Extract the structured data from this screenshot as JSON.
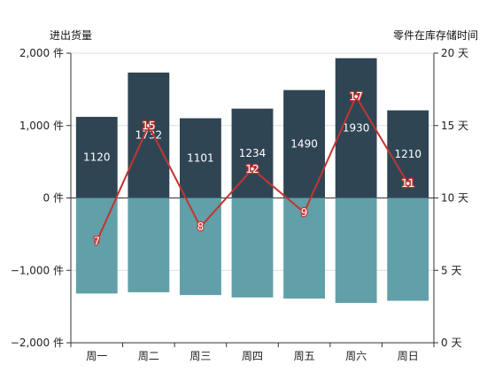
{
  "chart_data": {
    "type": "bar",
    "categories": [
      "周一",
      "周二",
      "周三",
      "周四",
      "周五",
      "周六",
      "周日"
    ],
    "y_left": {
      "title": "进出货量",
      "unit": "件",
      "min": -2000,
      "max": 2000,
      "interval": 1000,
      "ticks": [
        "−2,000 件",
        "−1,000 件",
        "0 件",
        "1,000 件",
        "2,000 件"
      ]
    },
    "y_right": {
      "title": "零件在库存储时间",
      "unit": "天",
      "min": 0,
      "max": 20,
      "interval": 5,
      "ticks": [
        "0 天",
        "5 天",
        "10 天",
        "15 天",
        "20 天"
      ]
    },
    "series": [
      {
        "type": "bar",
        "stack": "qty",
        "values": [
          1120,
          1732,
          1101,
          1234,
          1490,
          1930,
          1210
        ],
        "labels": [
          "1120",
          "1732",
          "1101",
          "1234",
          "1490",
          "1930",
          "1210"
        ],
        "color": "#2f4554",
        "axis": "left"
      },
      {
        "type": "bar",
        "stack": "qty",
        "values": [
          -1320,
          -1302,
          -1341,
          -1374,
          -1390,
          -1450,
          -1420
        ],
        "labels": [
          "−1320",
          "−1302",
          "−1341",
          "−1374",
          "−1390",
          "−1450",
          "−1420"
        ],
        "color": "#61a0a8",
        "axis": "left"
      },
      {
        "type": "line",
        "values": [
          7,
          15,
          8,
          12,
          9,
          17,
          11
        ],
        "labels": [
          "7",
          "15",
          "8",
          "12",
          "9",
          "17",
          "11"
        ],
        "color": "#c23531",
        "axis": "right"
      }
    ],
    "grid": true,
    "legend": "none"
  }
}
